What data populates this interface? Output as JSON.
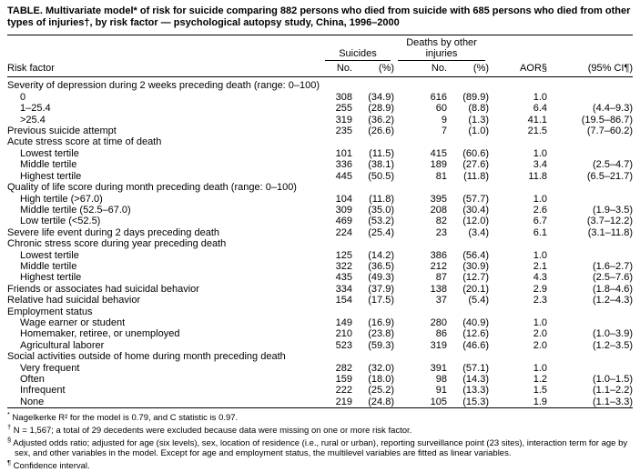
{
  "colors": {
    "text": "#000000",
    "background": "#ffffff"
  },
  "title": "TABLE. Multivariate model* of risk for suicide comparing 882 persons who died from suicide with 685 persons who died from other types of injuries†, by risk factor — psychological autopsy study, China, 1996–2000",
  "table": {
    "header": {
      "risk_factor": "Risk factor",
      "group_suicides": "Suicides",
      "group_other": "Deaths by other injuries",
      "no": "No.",
      "pct": "(%)",
      "no2": "No.",
      "pct2": "(%)",
      "aor": "AOR§",
      "ci": "(95% CI¶)"
    },
    "rows": [
      {
        "label": "Severity of depression during 2 weeks preceding death (range: 0–100)",
        "section": true
      },
      {
        "label": "0",
        "indent": true,
        "s_no": "308",
        "s_pct": "(34.9)",
        "o_no": "616",
        "o_pct": "(89.9)",
        "aor": "1.0",
        "ci": ""
      },
      {
        "label": "1–25.4",
        "indent": true,
        "s_no": "255",
        "s_pct": "(28.9)",
        "o_no": "60",
        "o_pct": "(8.8)",
        "aor": "6.4",
        "ci": "(4.4–9.3)"
      },
      {
        "label": ">25.4",
        "indent": true,
        "s_no": "319",
        "s_pct": "(36.2)",
        "o_no": "9",
        "o_pct": "(1.3)",
        "aor": "41.1",
        "ci": "(19.5–86.7)"
      },
      {
        "label": "Previous suicide attempt",
        "indent": false,
        "s_no": "235",
        "s_pct": "(26.6)",
        "o_no": "7",
        "o_pct": "(1.0)",
        "aor": "21.5",
        "ci": "(7.7–60.2)"
      },
      {
        "label": "Acute stress score at time of death",
        "section": true
      },
      {
        "label": "Lowest tertile",
        "indent": true,
        "s_no": "101",
        "s_pct": "(11.5)",
        "o_no": "415",
        "o_pct": "(60.6)",
        "aor": "1.0",
        "ci": ""
      },
      {
        "label": "Middle tertile",
        "indent": true,
        "s_no": "336",
        "s_pct": "(38.1)",
        "o_no": "189",
        "o_pct": "(27.6)",
        "aor": "3.4",
        "ci": "(2.5–4.7)"
      },
      {
        "label": "Highest tertile",
        "indent": true,
        "s_no": "445",
        "s_pct": "(50.5)",
        "o_no": "81",
        "o_pct": "(11.8)",
        "aor": "11.8",
        "ci": "(6.5–21.7)"
      },
      {
        "label": "Quality of life score during month preceding death (range: 0–100)",
        "section": true
      },
      {
        "label": "High tertile (>67.0)",
        "indent": true,
        "s_no": "104",
        "s_pct": "(11.8)",
        "o_no": "395",
        "o_pct": "(57.7)",
        "aor": "1.0",
        "ci": ""
      },
      {
        "label": "Middle tertile (52.5–67.0)",
        "indent": true,
        "s_no": "309",
        "s_pct": "(35.0)",
        "o_no": "208",
        "o_pct": "(30.4)",
        "aor": "2.6",
        "ci": "(1.9–3.5)"
      },
      {
        "label": "Low tertile (<52.5)",
        "indent": true,
        "s_no": "469",
        "s_pct": "(53.2)",
        "o_no": "82",
        "o_pct": "(12.0)",
        "aor": "6.7",
        "ci": "(3.7–12.2)"
      },
      {
        "label": "Severe life event during 2 days preceding death",
        "indent": false,
        "s_no": "224",
        "s_pct": "(25.4)",
        "o_no": "23",
        "o_pct": "(3.4)",
        "aor": "6.1",
        "ci": "(3.1–11.8)"
      },
      {
        "label": "Chronic stress score during year preceding death",
        "section": true
      },
      {
        "label": "Lowest tertile",
        "indent": true,
        "s_no": "125",
        "s_pct": "(14.2)",
        "o_no": "386",
        "o_pct": "(56.4)",
        "aor": "1.0",
        "ci": ""
      },
      {
        "label": "Middle tertile",
        "indent": true,
        "s_no": "322",
        "s_pct": "(36.5)",
        "o_no": "212",
        "o_pct": "(30.9)",
        "aor": "2.1",
        "ci": "(1.6–2.7)"
      },
      {
        "label": "Highest tertile",
        "indent": true,
        "s_no": "435",
        "s_pct": "(49.3)",
        "o_no": "87",
        "o_pct": "(12.7)",
        "aor": "4.3",
        "ci": "(2.5–7.6)"
      },
      {
        "label": "Friends or associates had suicidal behavior",
        "indent": false,
        "s_no": "334",
        "s_pct": "(37.9)",
        "o_no": "138",
        "o_pct": "(20.1)",
        "aor": "2.9",
        "ci": "(1.8–4.6)"
      },
      {
        "label": "Relative had suicidal behavior",
        "indent": false,
        "s_no": "154",
        "s_pct": "(17.5)",
        "o_no": "37",
        "o_pct": "(5.4)",
        "aor": "2.3",
        "ci": "(1.2–4.3)"
      },
      {
        "label": "Employment status",
        "section": true
      },
      {
        "label": "Wage earner or student",
        "indent": true,
        "s_no": "149",
        "s_pct": "(16.9)",
        "o_no": "280",
        "o_pct": "(40.9)",
        "aor": "1.0",
        "ci": ""
      },
      {
        "label": "Homemaker, retiree, or unemployed",
        "indent": true,
        "s_no": "210",
        "s_pct": "(23.8)",
        "o_no": "86",
        "o_pct": "(12.6)",
        "aor": "2.0",
        "ci": "(1.0–3.9)"
      },
      {
        "label": "Agricultural laborer",
        "indent": true,
        "s_no": "523",
        "s_pct": "(59.3)",
        "o_no": "319",
        "o_pct": "(46.6)",
        "aor": "2.0",
        "ci": "(1.2–3.5)"
      },
      {
        "label": "Social activities outside of home during month preceding death",
        "section": true
      },
      {
        "label": "Very frequent",
        "indent": true,
        "s_no": "282",
        "s_pct": "(32.0)",
        "o_no": "391",
        "o_pct": "(57.1)",
        "aor": "1.0",
        "ci": ""
      },
      {
        "label": "Often",
        "indent": true,
        "s_no": "159",
        "s_pct": "(18.0)",
        "o_no": "98",
        "o_pct": "(14.3)",
        "aor": "1.2",
        "ci": "(1.0–1.5)"
      },
      {
        "label": "Infrequent",
        "indent": true,
        "s_no": "222",
        "s_pct": "(25.2)",
        "o_no": "91",
        "o_pct": "(13.3)",
        "aor": "1.5",
        "ci": "(1.1–2.2)"
      },
      {
        "label": "None",
        "indent": true,
        "s_no": "219",
        "s_pct": "(24.8)",
        "o_no": "105",
        "o_pct": "(15.3)",
        "aor": "1.9",
        "ci": "(1.1–3.3)"
      }
    ]
  },
  "footnotes": [
    {
      "marker": "*",
      "text": "Nagelkerke R² for the model is 0.79, and C statistic is 0.97."
    },
    {
      "marker": "†",
      "text": "N = 1,567; a total of 29 decedents were excluded because data were missing on one or more risk factor."
    },
    {
      "marker": "§",
      "text": "Adjusted odds ratio; adjusted for age (six levels), sex, location of residence (i.e., rural or urban), reporting surveillance point (23 sites), interaction term for age by sex, and other variables in the model. Except for age and employment status, the multilevel variables are fitted as linear variables."
    },
    {
      "marker": "¶",
      "text": "Confidence interval."
    }
  ]
}
